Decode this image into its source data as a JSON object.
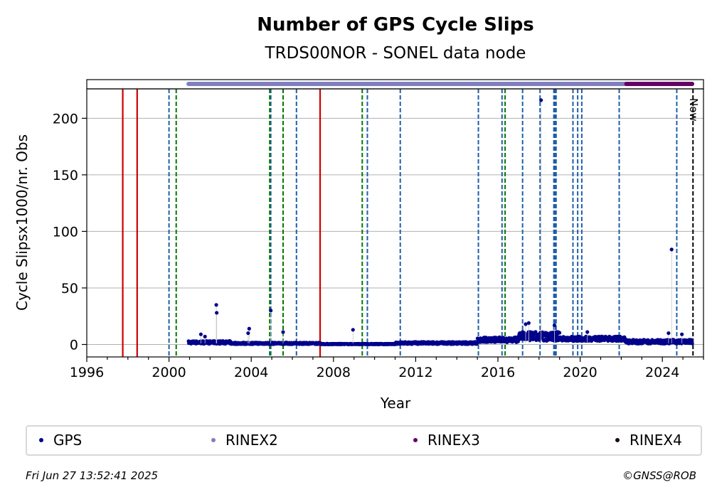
{
  "chart_data": {
    "type": "scatter",
    "title": "Number of GPS Cycle Slips",
    "subtitle": "TRDS00NOR - SONEL data node",
    "xlabel": "Year",
    "ylabel": "Cycle Slipsx1000/nr. Obs",
    "xlim": [
      1996.0,
      2026.0
    ],
    "ylim": [
      -11,
      226
    ],
    "x_ticks": [
      1996,
      2000,
      2004,
      2008,
      2012,
      2016,
      2020,
      2024
    ],
    "x_tick_labels": [
      "1996",
      "2000",
      "2004",
      "2008",
      "2012",
      "2016",
      "2020",
      "2024"
    ],
    "y_ticks": [
      0,
      50,
      100,
      150,
      200
    ],
    "y_tick_labels": [
      "0",
      "50",
      "100",
      "150",
      "200"
    ],
    "grid": "horizontal",
    "now_label": "Now",
    "now_year": 2025.49,
    "vertical_lines": {
      "red_solid": [
        1997.75,
        1998.45,
        2007.35
      ],
      "blue_dashed": [
        2000.0,
        2004.95,
        2006.2,
        2009.65,
        2011.25,
        2015.05,
        2016.2,
        2017.2,
        2018.05,
        2018.72,
        2018.78,
        2018.83,
        2019.65,
        2019.88,
        2020.08,
        2021.9,
        2024.7
      ],
      "green_dashed": [
        2000.35,
        2004.9,
        2005.55,
        2009.4,
        2016.35
      ],
      "black_dashed": [
        2025.49
      ]
    },
    "rinex_bars": [
      {
        "name": "RINEX2",
        "start": 2000.95,
        "end": 2022.25,
        "color": "#7f7fbf"
      },
      {
        "name": "RINEX3",
        "start": 2022.25,
        "end": 2025.45,
        "color": "#660066"
      }
    ],
    "series": [
      {
        "name": "GPS",
        "color": "#00008b",
        "segments": [
          {
            "x0": 2000.95,
            "x1": 2003.0,
            "base": 1.5,
            "spread": 2.5
          },
          {
            "x0": 2003.0,
            "x1": 2007.4,
            "base": 0.8,
            "spread": 1.5
          },
          {
            "x0": 2007.4,
            "x1": 2011.0,
            "base": 0.3,
            "spread": 0.6
          },
          {
            "x0": 2011.0,
            "x1": 2015.0,
            "base": 1.0,
            "spread": 2.0
          },
          {
            "x0": 2015.0,
            "x1": 2017.0,
            "base": 3.5,
            "spread": 4.5
          },
          {
            "x0": 2017.0,
            "x1": 2019.0,
            "base": 6.0,
            "spread": 8.0
          },
          {
            "x0": 2019.0,
            "x1": 2022.2,
            "base": 4.5,
            "spread": 4.0
          },
          {
            "x0": 2022.2,
            "x1": 2025.45,
            "base": 2.0,
            "spread": 3.5
          }
        ],
        "outliers": [
          {
            "x": 2001.55,
            "y": 9
          },
          {
            "x": 2001.75,
            "y": 7
          },
          {
            "x": 2002.3,
            "y": 35
          },
          {
            "x": 2002.32,
            "y": 28
          },
          {
            "x": 2003.9,
            "y": 14
          },
          {
            "x": 2003.85,
            "y": 10
          },
          {
            "x": 2004.95,
            "y": 30
          },
          {
            "x": 2005.55,
            "y": 11
          },
          {
            "x": 2008.95,
            "y": 13
          },
          {
            "x": 2017.35,
            "y": 18
          },
          {
            "x": 2017.5,
            "y": 19
          },
          {
            "x": 2018.1,
            "y": 216
          },
          {
            "x": 2018.75,
            "y": 17
          },
          {
            "x": 2020.35,
            "y": 11
          },
          {
            "x": 2024.3,
            "y": 10
          },
          {
            "x": 2024.45,
            "y": 84
          },
          {
            "x": 2024.95,
            "y": 9
          }
        ]
      }
    ],
    "legend": {
      "placement": "bottom",
      "items": [
        {
          "label": "GPS",
          "color": "#00008b"
        },
        {
          "label": "RINEX2",
          "color": "#7f7fbf"
        },
        {
          "label": "RINEX3",
          "color": "#660066"
        },
        {
          "label": "RINEX4",
          "color": "#1a0a1a"
        }
      ]
    }
  },
  "footer": {
    "timestamp": "Fri Jun 27 13:52:41 2025",
    "copyright": "©GNSS@ROB"
  },
  "colors": {
    "red_line": "#cc0000",
    "blue_line": "#1f5fa8",
    "green_line": "#007700",
    "grid": "#b0b0b0"
  }
}
